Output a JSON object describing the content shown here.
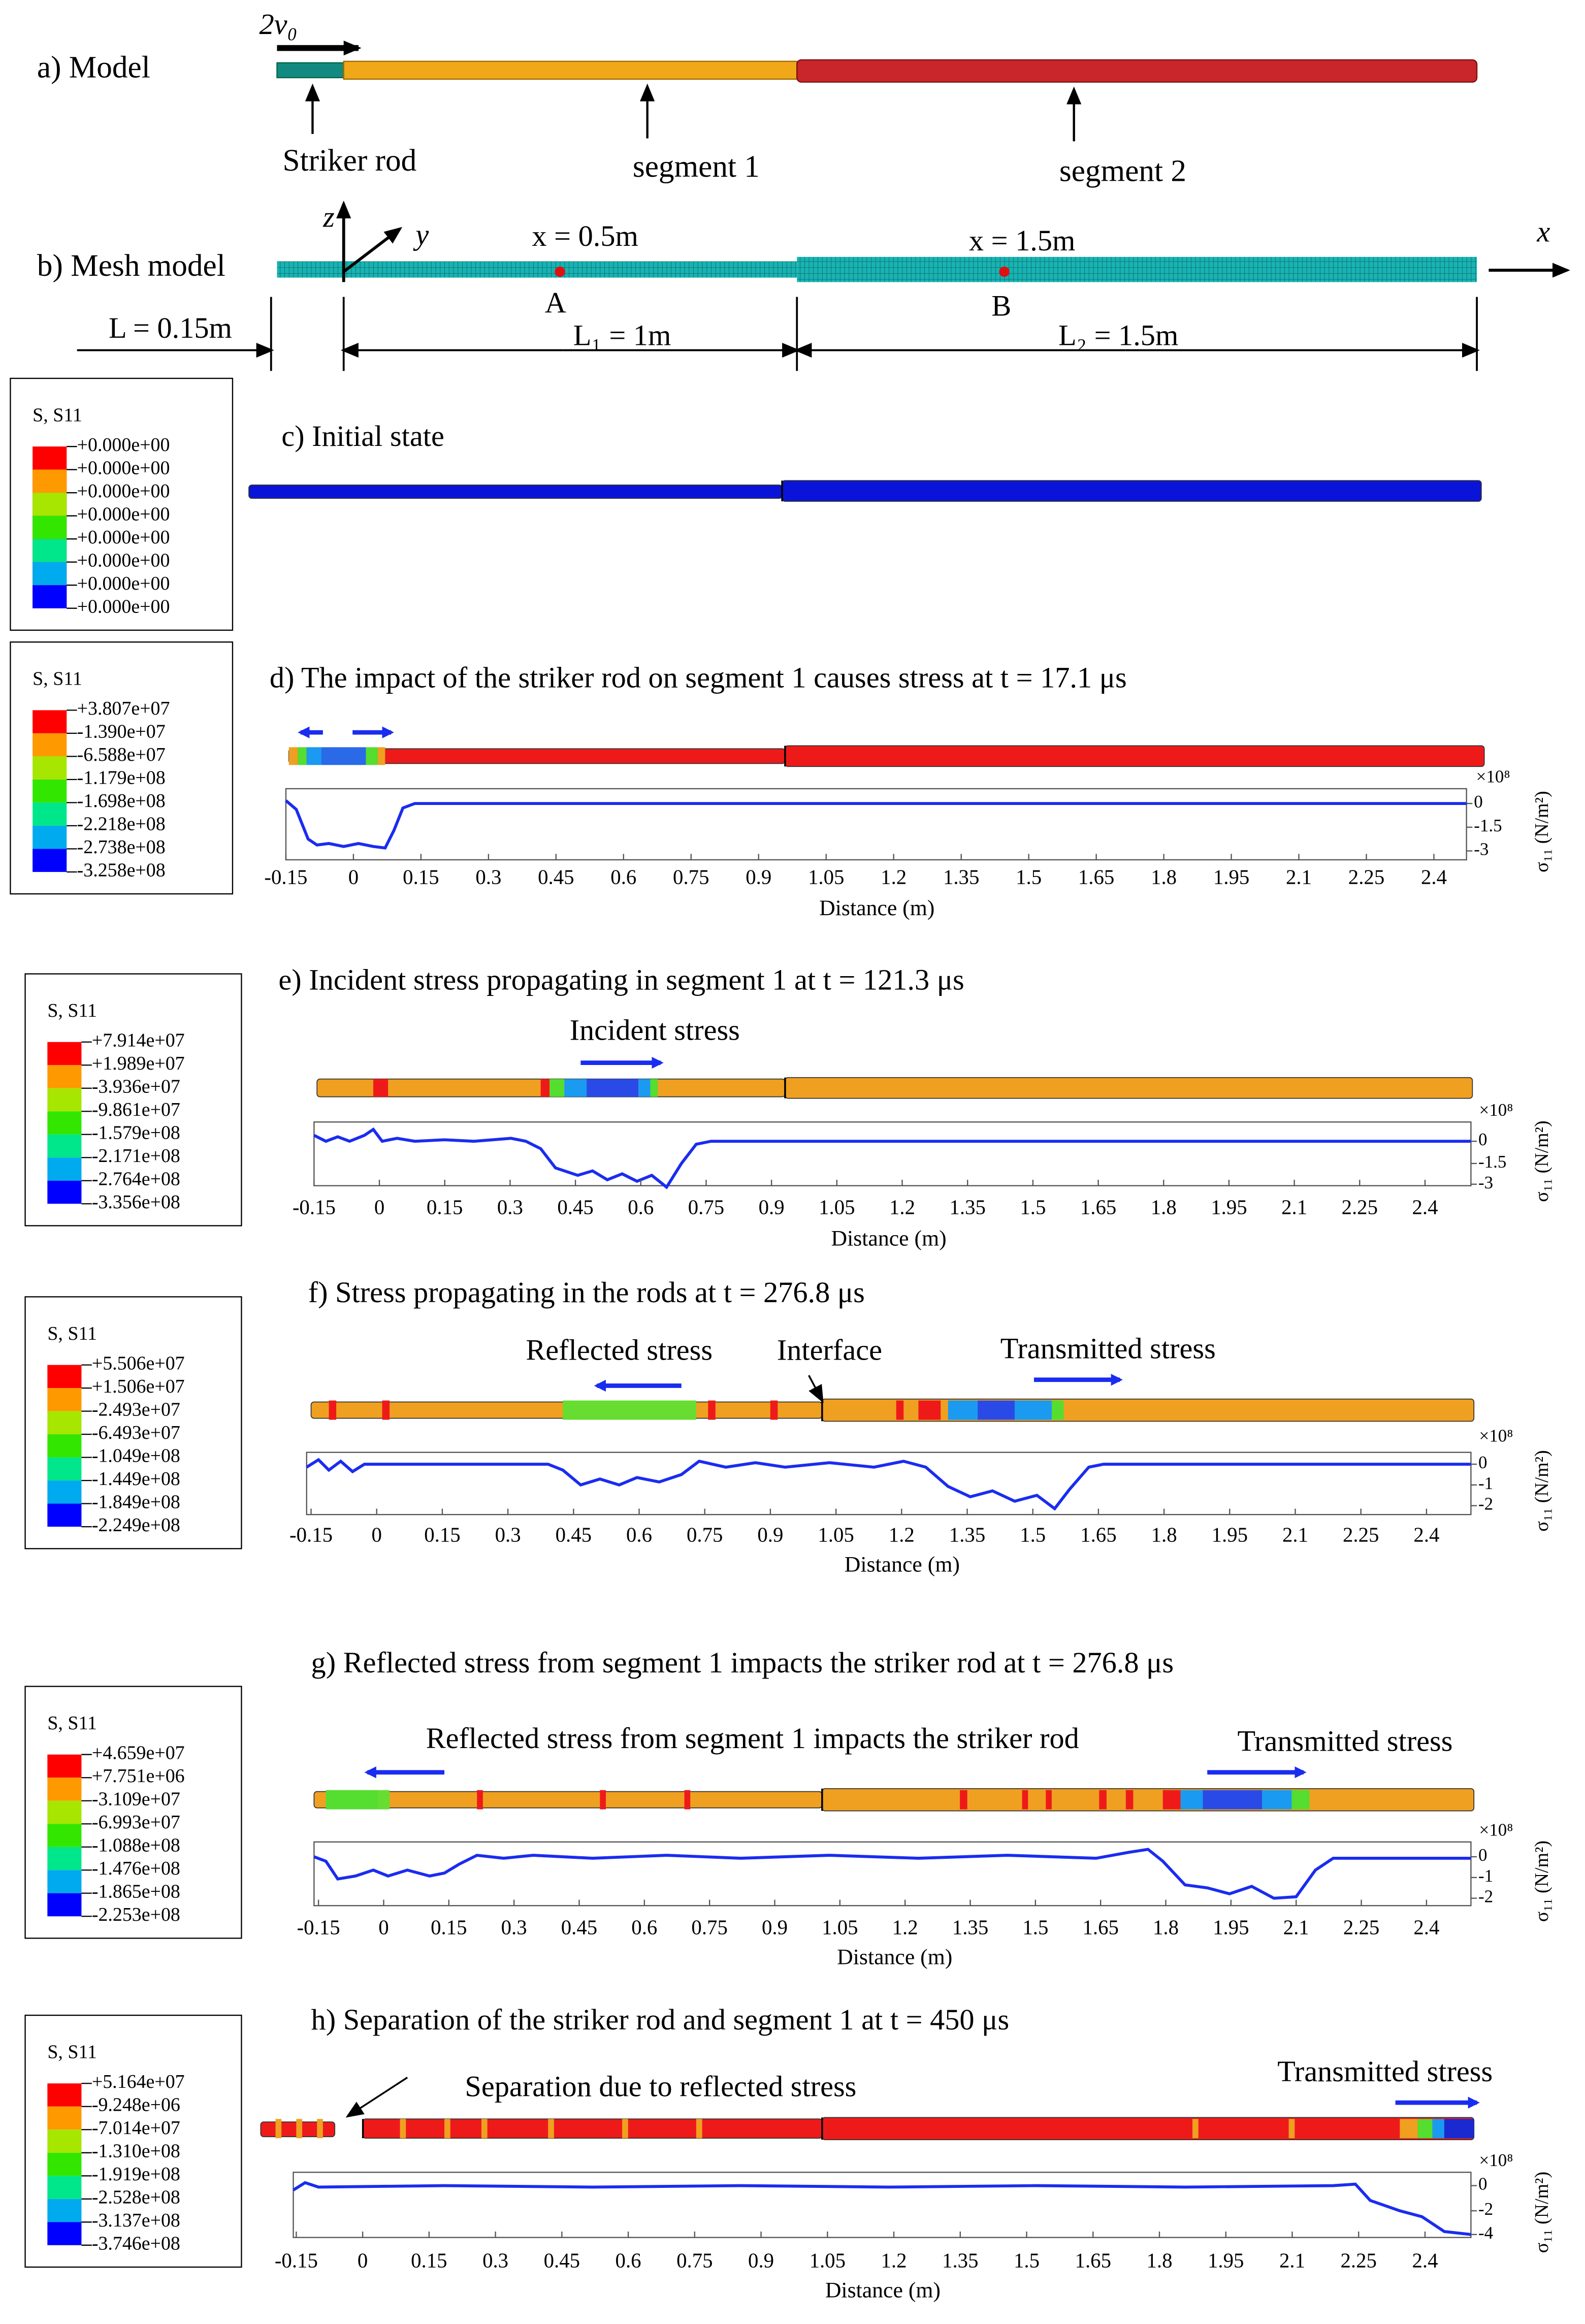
{
  "panel_a": {
    "label": "a) Model",
    "velocity": "2v₀",
    "parts": [
      "Striker rod",
      "segment 1",
      "segment 2"
    ]
  },
  "panel_b": {
    "label": "b) Mesh model",
    "axes": {
      "z": "z",
      "y": "y",
      "x": "x"
    },
    "points": [
      {
        "label": "x = 0.5m",
        "name": "A"
      },
      {
        "label": "x = 1.5m",
        "name": "B"
      }
    ],
    "dims": [
      "L = 0.15m",
      "L₁ = 1m",
      "L₂ = 1.5m"
    ]
  },
  "legends": [
    {
      "title": "S, S11",
      "values": [
        "+0.000e+00",
        "+0.000e+00",
        "+0.000e+00",
        "+0.000e+00",
        "+0.000e+00",
        "+0.000e+00",
        "+0.000e+00",
        "+0.000e+00"
      ]
    },
    {
      "title": "S, S11",
      "values": [
        "+3.807e+07",
        "-1.390e+07",
        "-6.588e+07",
        "-1.179e+08",
        "-1.698e+08",
        "-2.218e+08",
        "-2.738e+08",
        "-3.258e+08"
      ]
    },
    {
      "title": "S, S11",
      "values": [
        "+7.914e+07",
        "+1.989e+07",
        "-3.936e+07",
        "-9.861e+07",
        "-1.579e+08",
        "-2.171e+08",
        "-2.764e+08",
        "-3.356e+08"
      ]
    },
    {
      "title": "S, S11",
      "values": [
        "+5.506e+07",
        "+1.506e+07",
        "-2.493e+07",
        "-6.493e+07",
        "-1.049e+08",
        "-1.449e+08",
        "-1.849e+08",
        "-2.249e+08"
      ]
    },
    {
      "title": "S, S11",
      "values": [
        "+4.659e+07",
        "+7.751e+06",
        "-3.109e+07",
        "-6.993e+07",
        "-1.088e+08",
        "-1.476e+08",
        "-1.865e+08",
        "-2.253e+08"
      ]
    },
    {
      "title": "S, S11",
      "values": [
        "+5.164e+07",
        "-9.248e+06",
        "-7.014e+07",
        "-1.310e+08",
        "-1.919e+08",
        "-2.528e+08",
        "-3.137e+08",
        "-3.746e+08"
      ]
    }
  ],
  "plot": {
    "xticks": [
      "-0.15",
      "0",
      "0.15",
      "0.3",
      "0.45",
      "0.6",
      "0.75",
      "0.9",
      "1.05",
      "1.2",
      "1.35",
      "1.5",
      "1.65",
      "1.8",
      "1.95",
      "2.1",
      "2.25",
      "2.4"
    ],
    "xlabel": "Distance (m)",
    "ylabel": "σ₁₁ (N/m²)",
    "exponent": "×10⁸"
  },
  "panels": [
    {
      "title": "c) Initial state"
    },
    {
      "title": "d) The impact of the striker rod on segment 1 causes stress at t = 17.1 μs",
      "yticks": [
        "0",
        "-1.5",
        "-3"
      ]
    },
    {
      "title": "e) Incident stress propagating in segment 1 at t = 121.3 μs",
      "annotations": [
        "Incident stress"
      ],
      "yticks": [
        "0",
        "-1.5",
        "-3"
      ]
    },
    {
      "title": "f) Stress propagating in the rods at t = 276.8 μs",
      "annotations": [
        "Reflected stress",
        "Interface",
        "Transmitted stress"
      ],
      "yticks": [
        "0",
        "-1",
        "-2"
      ]
    },
    {
      "title": "g) Reflected stress from segment 1 impacts the striker rod at t = 276.8 μs",
      "annotations": [
        "Reflected stress from segment 1 impacts the striker rod",
        "Transmitted stress"
      ],
      "yticks": [
        "0",
        "-1",
        "-2"
      ]
    },
    {
      "title": "h) Separation of the striker rod and segment 1 at t = 450 μs",
      "annotations": [
        "Separation due to reflected stress",
        "Transmitted stress"
      ],
      "yticks": [
        "0",
        "-2",
        "-4"
      ]
    }
  ]
}
